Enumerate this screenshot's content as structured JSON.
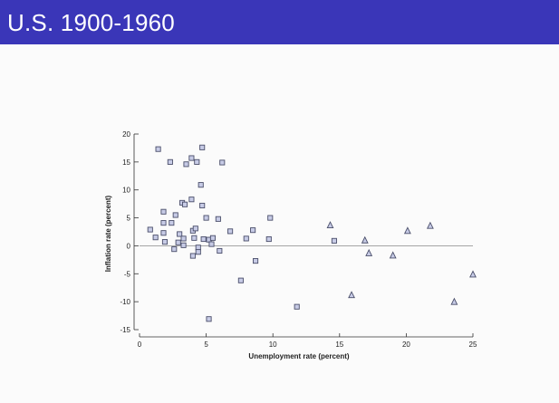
{
  "slide": {
    "title": "U.S. 1900-1960"
  },
  "colors": {
    "title_bar": "#3a36b8",
    "title_text": "#ffffff",
    "marker_fill": "#c7cbe6",
    "marker_stroke": "#4a4e6a",
    "axis": "#333333",
    "zero_line": "#999999"
  },
  "chart_data": {
    "type": "scatter",
    "title": "",
    "xlabel": "Unemployment rate (percent)",
    "ylabel": "Inflation rate (percent)",
    "xlim": [
      0,
      25
    ],
    "ylim": [
      -15,
      20
    ],
    "xticks": [
      "0",
      "5",
      "10",
      "15",
      "20",
      "25"
    ],
    "yticks": [
      "20",
      "15",
      "10",
      "5",
      "0",
      "-5",
      "-10",
      "-15"
    ],
    "grid": false,
    "legend": "none",
    "reference_line": {
      "y": 0
    },
    "series": [
      {
        "marker": "square",
        "points": [
          {
            "x": 1.4,
            "y": 17.3
          },
          {
            "x": 2.3,
            "y": 15.0
          },
          {
            "x": 4.7,
            "y": 17.6
          },
          {
            "x": 3.9,
            "y": 15.7
          },
          {
            "x": 3.5,
            "y": 14.6
          },
          {
            "x": 4.3,
            "y": 15.0
          },
          {
            "x": 6.2,
            "y": 14.9
          },
          {
            "x": 4.6,
            "y": 10.9
          },
          {
            "x": 3.9,
            "y": 8.3
          },
          {
            "x": 3.2,
            "y": 7.7
          },
          {
            "x": 3.4,
            "y": 7.4
          },
          {
            "x": 4.7,
            "y": 7.2
          },
          {
            "x": 1.8,
            "y": 6.1
          },
          {
            "x": 2.7,
            "y": 5.5
          },
          {
            "x": 5.0,
            "y": 5.0
          },
          {
            "x": 5.9,
            "y": 4.8
          },
          {
            "x": 9.8,
            "y": 5.0
          },
          {
            "x": 1.8,
            "y": 4.1
          },
          {
            "x": 2.4,
            "y": 4.1
          },
          {
            "x": 0.8,
            "y": 2.9
          },
          {
            "x": 1.8,
            "y": 2.3
          },
          {
            "x": 3.0,
            "y": 2.1
          },
          {
            "x": 4.0,
            "y": 2.7
          },
          {
            "x": 4.2,
            "y": 3.1
          },
          {
            "x": 6.8,
            "y": 2.6
          },
          {
            "x": 8.5,
            "y": 2.8
          },
          {
            "x": 1.2,
            "y": 1.5
          },
          {
            "x": 3.3,
            "y": 1.3
          },
          {
            "x": 4.1,
            "y": 1.4
          },
          {
            "x": 4.8,
            "y": 1.2
          },
          {
            "x": 5.2,
            "y": 1.1
          },
          {
            "x": 5.5,
            "y": 1.4
          },
          {
            "x": 8.0,
            "y": 1.3
          },
          {
            "x": 9.7,
            "y": 1.2
          },
          {
            "x": 1.9,
            "y": 0.7
          },
          {
            "x": 2.9,
            "y": 0.6
          },
          {
            "x": 3.3,
            "y": 0.1
          },
          {
            "x": 5.4,
            "y": 0.3
          },
          {
            "x": 2.6,
            "y": -0.6
          },
          {
            "x": 4.4,
            "y": -0.3
          },
          {
            "x": 4.4,
            "y": -1.1
          },
          {
            "x": 6.0,
            "y": -0.9
          },
          {
            "x": 4.0,
            "y": -1.8
          },
          {
            "x": 8.7,
            "y": -2.7
          },
          {
            "x": 7.6,
            "y": -6.2
          },
          {
            "x": 11.8,
            "y": -10.9
          },
          {
            "x": 5.2,
            "y": -13.1
          },
          {
            "x": 14.6,
            "y": 0.9
          }
        ]
      },
      {
        "marker": "triangle",
        "points": [
          {
            "x": 14.3,
            "y": 3.7
          },
          {
            "x": 21.8,
            "y": 3.6
          },
          {
            "x": 20.1,
            "y": 2.7
          },
          {
            "x": 16.9,
            "y": 1.0
          },
          {
            "x": 17.2,
            "y": -1.3
          },
          {
            "x": 19.0,
            "y": -1.7
          },
          {
            "x": 25.0,
            "y": -5.1
          },
          {
            "x": 15.9,
            "y": -8.8
          },
          {
            "x": 23.6,
            "y": -10.0
          }
        ]
      }
    ]
  }
}
